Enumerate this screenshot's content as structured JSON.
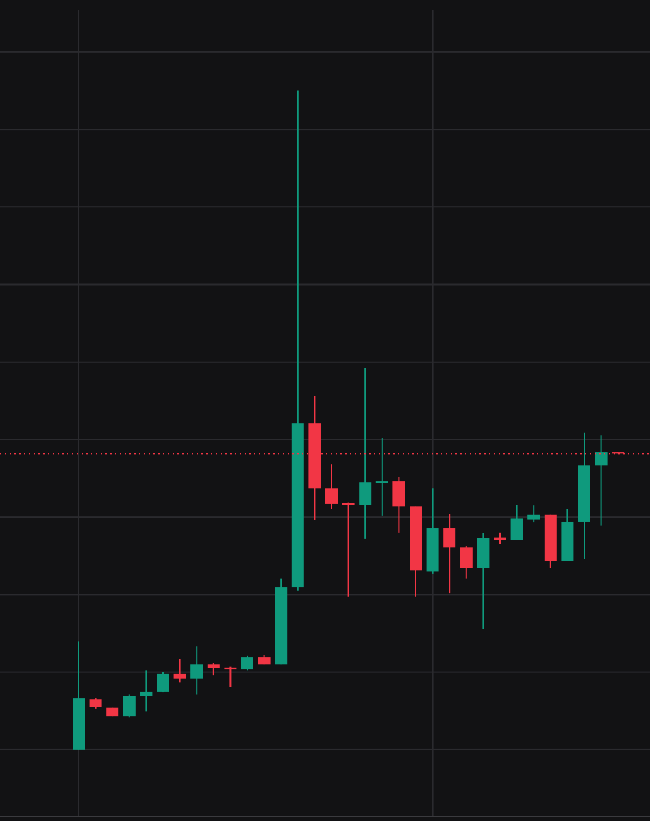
{
  "chart_data": {
    "type": "candlestick",
    "categories": [
      null,
      null,
      null,
      null,
      null,
      null,
      null,
      null,
      null,
      null,
      null,
      null,
      null,
      null,
      null,
      null,
      null,
      null,
      null,
      null,
      null,
      null,
      null,
      null,
      null,
      null,
      null,
      null,
      null,
      null,
      null,
      null,
      null
    ],
    "open": [
      0,
      0.65,
      0.54,
      0.43,
      0.69,
      0.75,
      0.98,
      0.92,
      1.1,
      1.06,
      1.04,
      1.19,
      1.1,
      2.1,
      4.21,
      3.37,
      3.18,
      3.16,
      3.44,
      3.46,
      3.14,
      2.3,
      2.86,
      2.61,
      2.34,
      2.74,
      2.71,
      2.97,
      3.03,
      2.43,
      2.94,
      3.67,
      3.84
    ],
    "high": [
      1.4,
      0.66,
      0.54,
      0.71,
      1.02,
      1.0,
      1.17,
      1.33,
      1.12,
      1.07,
      1.21,
      1.22,
      2.21,
      8.5,
      4.56,
      3.68,
      3.19,
      4.92,
      4.02,
      3.52,
      3.14,
      3.37,
      3.04,
      2.63,
      2.79,
      2.8,
      3.16,
      3.15,
      3.03,
      3.1,
      4.09,
      4.05,
      3.84
    ],
    "low": [
      0,
      0.53,
      0.43,
      0.42,
      0.49,
      0.74,
      0.87,
      0.71,
      0.96,
      0.81,
      1.02,
      1.1,
      1.1,
      2.05,
      2.96,
      3.1,
      1.97,
      2.72,
      3.02,
      2.8,
      1.97,
      2.27,
      2.02,
      2.21,
      1.56,
      2.65,
      2.71,
      2.93,
      2.34,
      2.43,
      2.46,
      2.89,
      3.82
    ],
    "close": [
      0.66,
      0.55,
      0.43,
      0.69,
      0.75,
      0.98,
      0.92,
      1.1,
      1.05,
      1.04,
      1.19,
      1.1,
      2.1,
      4.21,
      3.37,
      3.17,
      3.16,
      3.45,
      3.46,
      3.14,
      2.31,
      2.86,
      2.61,
      2.34,
      2.73,
      2.71,
      2.98,
      3.03,
      2.43,
      2.94,
      3.67,
      3.84,
      3.82
    ],
    "up_color": "#0f9a7d",
    "down_color": "#f23645",
    "ylim": [
      -0.92,
      9.67
    ],
    "yticks": [
      0,
      1,
      2,
      3,
      4,
      5,
      6,
      7,
      8,
      9
    ],
    "grid": true,
    "xgrid": [
      0,
      21
    ],
    "last_price_line": true
  }
}
